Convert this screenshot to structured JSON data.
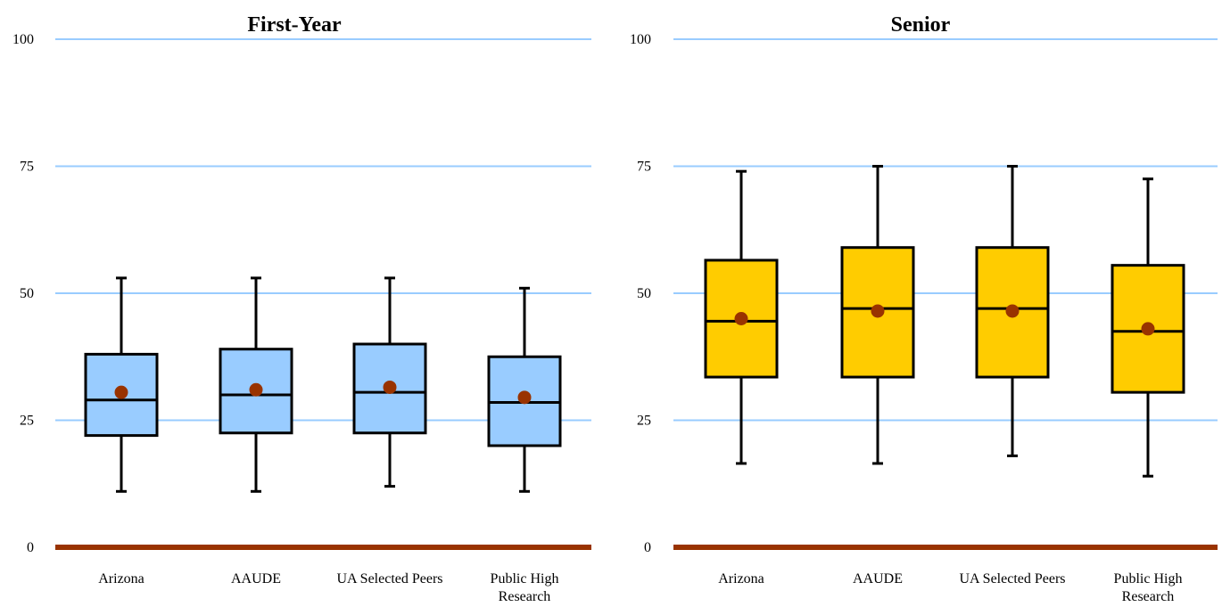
{
  "chart_data": [
    {
      "type": "box",
      "title": "First-Year",
      "ylim": [
        0,
        100
      ],
      "yticks": [
        "0",
        "25",
        "50",
        "75",
        "100"
      ],
      "grid": true,
      "colors": {
        "box": "#99ccff",
        "mean": "#993300",
        "baseline": "#993300",
        "grid": "#99ccff"
      },
      "categories": [
        {
          "label": [
            "Arizona"
          ],
          "min": 11,
          "q1": 22,
          "median": 29,
          "q3": 38,
          "max": 53,
          "mean": 30.5
        },
        {
          "label": [
            "AAUDE"
          ],
          "min": 11,
          "q1": 22.5,
          "median": 30,
          "q3": 39,
          "max": 53,
          "mean": 31
        },
        {
          "label": [
            "UA Selected Peers"
          ],
          "min": 12,
          "q1": 22.5,
          "median": 30.5,
          "q3": 40,
          "max": 53,
          "mean": 31.5
        },
        {
          "label": [
            "Public High",
            "Research"
          ],
          "min": 11,
          "q1": 20,
          "median": 28.5,
          "q3": 37.5,
          "max": 51,
          "mean": 29.5
        }
      ]
    },
    {
      "type": "box",
      "title": "Senior",
      "ylim": [
        0,
        100
      ],
      "yticks": [
        "0",
        "25",
        "50",
        "75",
        "100"
      ],
      "grid": true,
      "colors": {
        "box": "#ffcc00",
        "mean": "#993300",
        "baseline": "#993300",
        "grid": "#99ccff"
      },
      "categories": [
        {
          "label": [
            "Arizona"
          ],
          "min": 16.5,
          "q1": 33.5,
          "median": 44.5,
          "q3": 56.5,
          "max": 74,
          "mean": 45
        },
        {
          "label": [
            "AAUDE"
          ],
          "min": 16.5,
          "q1": 33.5,
          "median": 47,
          "q3": 59,
          "max": 75,
          "mean": 46.5
        },
        {
          "label": [
            "UA Selected Peers"
          ],
          "min": 18,
          "q1": 33.5,
          "median": 47,
          "q3": 59,
          "max": 75,
          "mean": 46.5
        },
        {
          "label": [
            "Public High",
            "Research"
          ],
          "min": 14,
          "q1": 30.5,
          "median": 42.5,
          "q3": 55.5,
          "max": 72.5,
          "mean": 43
        }
      ]
    }
  ]
}
